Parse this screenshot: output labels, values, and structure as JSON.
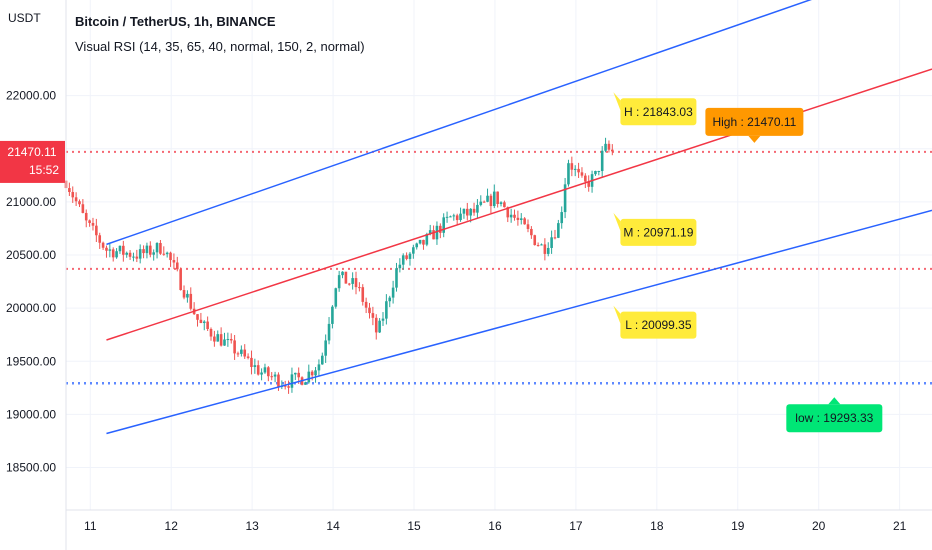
{
  "header": {
    "title": "Bitcoin / TetherUS, 1h, BINANCE",
    "indicator": "Visual RSI (14, 35, 65, 40, normal, 150, 2, normal)"
  },
  "price_scale": {
    "currency": "USDT",
    "current_price": "21470.11",
    "countdown": "15:52"
  },
  "colors": {
    "up": "#26a69a",
    "down": "#ef5350",
    "channel_outer": "#2962ff",
    "channel_mid": "#f23645",
    "level_red": "#f23645",
    "level_blue": "#2962ff",
    "callout_yellow": "#ffeb3b",
    "callout_orange": "#ff9800",
    "callout_green": "#00e676",
    "price_badge": "#f23645"
  },
  "chart_data": {
    "type": "candlestick",
    "y_ticks": [
      "22000.00",
      "21500.00",
      "21000.00",
      "20500.00",
      "20000.00",
      "19500.00",
      "19000.00",
      "18500.00"
    ],
    "y_range": [
      18100,
      22900
    ],
    "x_ticks": [
      "11",
      "12",
      "13",
      "14",
      "15",
      "16",
      "17",
      "18",
      "19",
      "20",
      "21"
    ],
    "x_range_days": [
      10.7,
      21.4
    ],
    "candle_path_days": [
      10.7,
      10.95,
      11.2,
      11.6,
      11.9,
      12.05,
      12.35,
      12.8,
      13.1,
      13.4,
      13.65,
      13.85,
      14.05,
      14.3,
      14.55,
      14.8,
      15.1,
      15.45,
      15.75,
      16.0,
      16.3,
      16.6,
      16.8,
      16.9,
      17.1,
      17.25,
      17.35,
      17.45
    ],
    "candle_path_prices": [
      21200,
      20800,
      20550,
      20500,
      20580,
      20350,
      19850,
      19600,
      19400,
      19300,
      19350,
      19500,
      20300,
      20200,
      19750,
      20400,
      20600,
      20850,
      20900,
      21050,
      20800,
      20560,
      20800,
      21400,
      21150,
      21250,
      21500,
      21470
    ],
    "channel": {
      "start_day": 11.2,
      "end_day": 21.4,
      "upper": [
        20600,
        23300
      ],
      "middle": [
        19700,
        22250
      ],
      "lower": [
        18820,
        20920
      ]
    },
    "horizontal_levels": [
      {
        "price": 21470.11,
        "style": "dotted",
        "color": "red"
      },
      {
        "price": 20370,
        "style": "dotted",
        "color": "red"
      },
      {
        "price": 19293.33,
        "style": "dotted",
        "color": "blue"
      }
    ],
    "callouts": {
      "upper_label": "H : 21843.03",
      "middle_label": "M : 20971.19",
      "lower_label": "L : 20099.35",
      "high_label": "High : 21470.11",
      "low_label": "low : 19293.33"
    }
  }
}
